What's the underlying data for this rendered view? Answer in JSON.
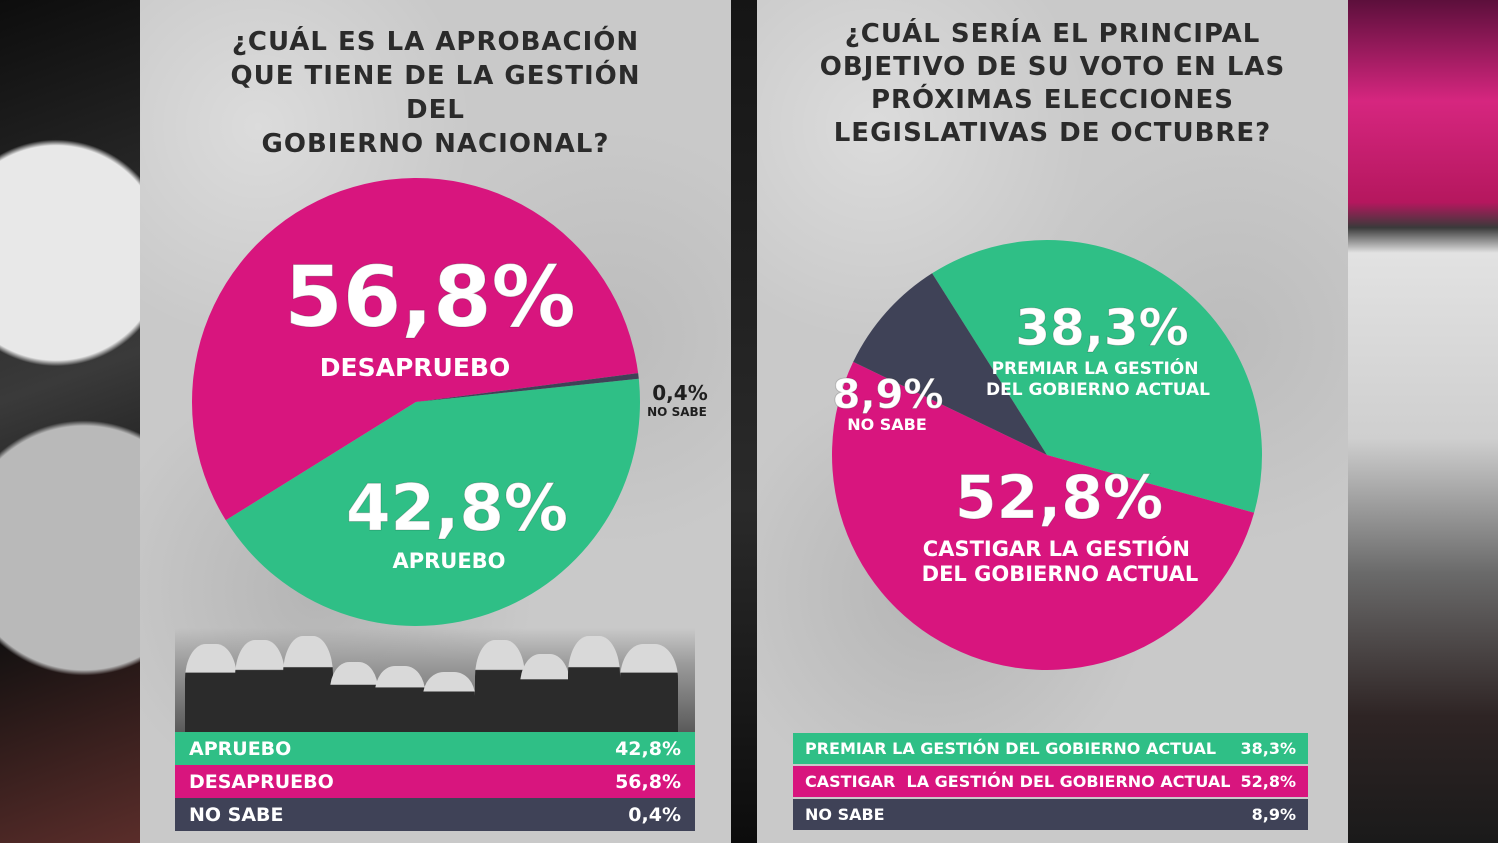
{
  "colors": {
    "pink": "#d8157e",
    "green": "#2fbf86",
    "dark": "#3f4257",
    "text_dark": "#1f1f1f"
  },
  "chart_data": [
    {
      "type": "pie",
      "title": "¿CUÁL ES LA APROBACIÓN\nQUE TIENE DE LA GESTIÓN DEL\nGOBIERNO NACIONAL?",
      "slices": [
        {
          "label": "DESAPRUEBO",
          "value": 56.8,
          "display": "56,8%",
          "color": "#d8157e"
        },
        {
          "label": "APRUEBO",
          "value": 42.8,
          "display": "42,8%",
          "color": "#2fbf86"
        },
        {
          "label": "NO SABE",
          "value": 0.4,
          "display": "0,4%",
          "color": "#3f4257"
        }
      ],
      "legend": [
        {
          "label": "APRUEBO",
          "value": "42,8%"
        },
        {
          "label": "DESAPRUEBO",
          "value": "56,8%"
        },
        {
          "label": "NO SABE",
          "value": "0,4%"
        }
      ]
    },
    {
      "type": "pie",
      "title": "¿CUÁL SERÍA EL PRINCIPAL\nOBJETIVO DE SU VOTO EN LAS\nPRÓXIMAS ELECCIONES\nLEGISLATIVAS DE OCTUBRE?",
      "slices": [
        {
          "label": "PREMIAR LA GESTIÓN\nDEL GOBIERNO ACTUAL",
          "value": 38.3,
          "display": "38,3%",
          "color": "#2fbf86"
        },
        {
          "label": "CASTIGAR LA GESTIÓN\nDEL GOBIERNO ACTUAL",
          "value": 52.8,
          "display": "52,8%",
          "color": "#d8157e"
        },
        {
          "label": "NO SABE",
          "value": 8.9,
          "display": "8,9%",
          "color": "#3f4257"
        }
      ],
      "legend": [
        {
          "label": "PREMIAR LA GESTIÓN DEL GOBIERNO ACTUAL",
          "value": "38,3%"
        },
        {
          "label": "CASTIGAR  LA GESTIÓN DEL GOBIERNO ACTUAL",
          "value": "52,8%"
        },
        {
          "label": "NO SABE",
          "value": "8,9%"
        }
      ]
    }
  ]
}
